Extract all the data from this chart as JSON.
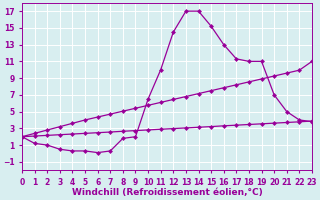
{
  "line1_x": [
    0,
    1,
    2,
    3,
    4,
    5,
    6,
    7,
    8,
    9,
    10,
    11,
    12,
    13,
    14,
    15,
    16,
    17,
    18,
    19,
    20,
    21,
    22,
    23
  ],
  "line1_y": [
    2.0,
    1.2,
    1.0,
    0.5,
    0.3,
    0.3,
    0.1,
    0.3,
    1.8,
    2.0,
    6.5,
    10.0,
    14.5,
    17.0,
    17.0,
    15.2,
    13.0,
    11.3,
    11.0,
    11.0,
    7.0,
    5.0,
    4.0,
    3.8
  ],
  "line2_x": [
    0,
    1,
    2,
    3,
    4,
    5,
    6,
    7,
    8,
    9,
    10,
    11,
    12,
    13,
    14,
    15,
    16,
    17,
    18,
    19,
    20,
    21,
    22,
    23
  ],
  "line2_y": [
    2.0,
    2.4,
    2.8,
    3.2,
    3.6,
    4.0,
    4.35,
    4.7,
    5.05,
    5.4,
    5.75,
    6.1,
    6.45,
    6.8,
    7.15,
    7.5,
    7.85,
    8.2,
    8.55,
    8.9,
    9.25,
    9.6,
    9.95,
    11.0
  ],
  "line3_x": [
    0,
    1,
    2,
    3,
    4,
    5,
    6,
    7,
    8,
    9,
    10,
    11,
    12,
    13,
    14,
    15,
    16,
    17,
    18,
    19,
    20,
    21,
    22,
    23
  ],
  "line3_y": [
    2.0,
    2.08,
    2.16,
    2.24,
    2.32,
    2.4,
    2.48,
    2.56,
    2.65,
    2.73,
    2.81,
    2.89,
    2.97,
    3.05,
    3.13,
    3.21,
    3.3,
    3.38,
    3.46,
    3.54,
    3.62,
    3.7,
    3.78,
    3.87
  ],
  "line_color": "#990099",
  "marker": "D",
  "marker_size": 2.5,
  "bg_color": "#d8eef0",
  "grid_color": "#b8d8da",
  "xlabel": "Windchill (Refroidissement éolien,°C)",
  "ylabel": "",
  "xlim": [
    0,
    23
  ],
  "ylim": [
    -2,
    18
  ],
  "xticks": [
    0,
    1,
    2,
    3,
    4,
    5,
    6,
    7,
    8,
    9,
    10,
    11,
    12,
    13,
    14,
    15,
    16,
    17,
    18,
    19,
    20,
    21,
    22,
    23
  ],
  "yticks": [
    -1,
    1,
    3,
    5,
    7,
    9,
    11,
    13,
    15,
    17
  ],
  "tick_fontsize": 5.5,
  "xlabel_fontsize": 6.5,
  "line_width": 0.9
}
